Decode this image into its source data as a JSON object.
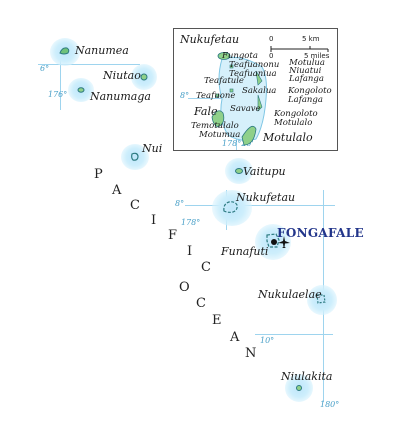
{
  "ocean": {
    "word1": [
      "P",
      "A",
      "C",
      "I",
      "F",
      "I",
      "C"
    ],
    "word2": [
      "O",
      "C",
      "E",
      "A",
      "N"
    ]
  },
  "atolls": {
    "nanumea": "Nanumea",
    "niutao": "Niutao",
    "nanumaga": "Nanumaga",
    "nui": "Nui",
    "vaitupu": "Vaitupu",
    "nukufetau": "Nukufetau",
    "funafuti": "Funafuti",
    "nukulaelae": "Nukulaelae",
    "niulakita": "Niulakita"
  },
  "capital": "FONGAFALE",
  "ticks": {
    "lat6": "6°",
    "lat8": "8°",
    "lat10": "10°",
    "lon176": "176°",
    "lon178": "178°",
    "lon180": "180°"
  },
  "inset": {
    "title": "Nukufetau",
    "scale_km": "5 km",
    "scale_mi": "5 miles",
    "scale_zero": "0",
    "lat": "8°",
    "lon": "178°20'",
    "islets": {
      "fungota": "Fungota",
      "teafuanonu": "Teafuanonu",
      "teafuaniua": "Teafuaniua",
      "teafatule": "Teafatule",
      "motulua": "Motulua",
      "niuatui": "Niuatui",
      "lafanga": "Lafanga",
      "teafuone": "Teafuone",
      "sakalua": "Sakalua",
      "kongoloto1": "Kongoloto",
      "lafanga2": "Lafanga",
      "fale": "Fale",
      "savave": "Savave",
      "temotulalo": "Temotulalo",
      "motumua": "Motumua",
      "kongoloto2": "Kongoloto",
      "motulalo_small": "Motulalo",
      "motulalo": "Motulalo"
    }
  },
  "colors": {
    "sea_glow": "#cdeefc",
    "grid": "#9ed4ee",
    "land": "#8fd08a",
    "capital_text": "#22358a"
  }
}
